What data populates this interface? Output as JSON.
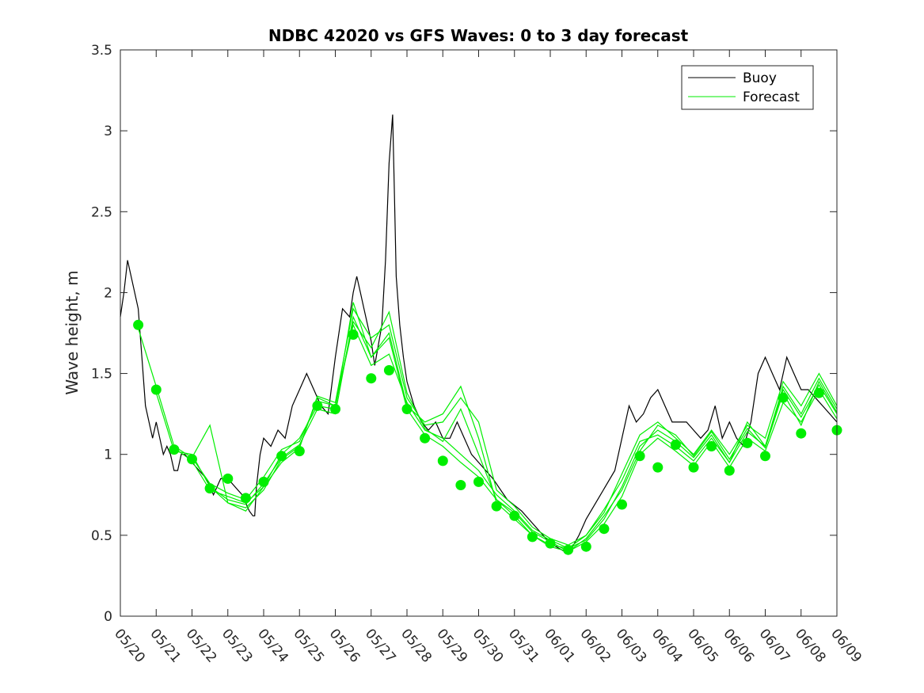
{
  "chart_data": {
    "type": "line",
    "title": "NDBC 42020 vs GFS Waves: 0 to 3 day forecast",
    "xlabel": "",
    "ylabel": "Wave height, m",
    "x_ticks": [
      "05/20",
      "05/21",
      "05/22",
      "05/23",
      "05/24",
      "05/25",
      "05/26",
      "05/27",
      "05/28",
      "05/29",
      "05/30",
      "05/31",
      "06/01",
      "06/02",
      "06/03",
      "06/04",
      "06/05",
      "06/06",
      "06/07",
      "06/08",
      "06/09"
    ],
    "xlim_days": [
      0,
      20
    ],
    "ylim": [
      0,
      3.5
    ],
    "y_ticks": [
      "0",
      "0.5",
      "1",
      "1.5",
      "2",
      "2.5",
      "3",
      "3.5"
    ],
    "grid": false,
    "legend": {
      "position": "top-right",
      "entries": [
        {
          "label": "Buoy",
          "color": "#000000"
        },
        {
          "label": "Forecast",
          "color": "#00ee00"
        }
      ]
    },
    "colors": {
      "buoy": "#000000",
      "forecast": "#00ee00"
    },
    "buoy": {
      "x": [
        0,
        0.1,
        0.2,
        0.3,
        0.4,
        0.5,
        0.6,
        0.7,
        0.8,
        0.9,
        1.0,
        1.1,
        1.2,
        1.3,
        1.4,
        1.5,
        1.6,
        1.7,
        1.8,
        2.0,
        2.2,
        2.4,
        2.5,
        2.6,
        2.8,
        3.0,
        3.2,
        3.4,
        3.5,
        3.6,
        3.7,
        3.75,
        3.8,
        3.9,
        4.0,
        4.2,
        4.4,
        4.6,
        4.8,
        5.0,
        5.2,
        5.4,
        5.6,
        5.8,
        6.0,
        6.2,
        6.4,
        6.5,
        6.6,
        6.7,
        6.8,
        7.0,
        7.1,
        7.3,
        7.4,
        7.5,
        7.6,
        7.65,
        7.7,
        7.8,
        7.9,
        8.0,
        8.2,
        8.4,
        8.6,
        8.8,
        9.0,
        9.2,
        9.4,
        9.6,
        9.8,
        10.0,
        10.4,
        10.8,
        11.2,
        11.6,
        12.0,
        12.4,
        12.6,
        12.8,
        13.0,
        13.4,
        13.8,
        14.0,
        14.2,
        14.4,
        14.6,
        14.8,
        15.0,
        15.2,
        15.4,
        15.6,
        15.8,
        16.0,
        16.2,
        16.4,
        16.6,
        16.8,
        17.0,
        17.2,
        17.4,
        17.6,
        17.8,
        18.0,
        18.2,
        18.4,
        18.6,
        18.8,
        19.0,
        19.2,
        19.4,
        19.6,
        19.8,
        20.0
      ],
      "y": [
        1.85,
        2.0,
        2.2,
        2.1,
        2.0,
        1.9,
        1.6,
        1.3,
        1.2,
        1.1,
        1.2,
        1.1,
        1.0,
        1.05,
        1.0,
        0.9,
        0.9,
        1.0,
        1.0,
        0.95,
        0.9,
        0.85,
        0.8,
        0.75,
        0.85,
        0.85,
        0.8,
        0.75,
        0.7,
        0.65,
        0.62,
        0.62,
        0.8,
        1.0,
        1.1,
        1.05,
        1.15,
        1.1,
        1.3,
        1.4,
        1.5,
        1.4,
        1.3,
        1.25,
        1.6,
        1.9,
        1.85,
        2.0,
        2.1,
        2.0,
        1.9,
        1.7,
        1.55,
        1.8,
        2.2,
        2.8,
        3.1,
        2.6,
        2.1,
        1.8,
        1.6,
        1.45,
        1.3,
        1.2,
        1.15,
        1.2,
        1.1,
        1.1,
        1.2,
        1.1,
        1.0,
        0.95,
        0.85,
        0.72,
        0.65,
        0.55,
        0.45,
        0.4,
        0.42,
        0.5,
        0.6,
        0.75,
        0.9,
        1.1,
        1.3,
        1.2,
        1.25,
        1.35,
        1.4,
        1.3,
        1.2,
        1.2,
        1.2,
        1.15,
        1.1,
        1.15,
        1.3,
        1.1,
        1.2,
        1.1,
        1.05,
        1.2,
        1.5,
        1.6,
        1.5,
        1.4,
        1.6,
        1.5,
        1.4,
        1.4,
        1.35,
        1.3,
        1.25,
        1.2
      ]
    },
    "forecast_markers": {
      "x": [
        0.5,
        1.0,
        1.5,
        2.0,
        2.5,
        3.0,
        3.5,
        4.0,
        4.5,
        5.0,
        5.5,
        6.0,
        6.5,
        7.0,
        7.5,
        8.0,
        8.5,
        9.0,
        9.5,
        10.0,
        10.5,
        11.0,
        11.5,
        12.0,
        12.5,
        13.0,
        13.5,
        14.0,
        14.5,
        15.0,
        15.5,
        16.0,
        16.5,
        17.0,
        17.5,
        18.0,
        18.5,
        19.0,
        19.5,
        20.0
      ],
      "y": [
        1.8,
        1.4,
        1.03,
        0.97,
        0.79,
        0.85,
        0.73,
        0.83,
        0.99,
        1.02,
        1.3,
        1.28,
        1.74,
        1.47,
        1.52,
        1.28,
        1.1,
        0.96,
        0.81,
        0.83,
        0.68,
        0.62,
        0.49,
        0.45,
        0.41,
        0.43,
        0.54,
        0.69,
        0.99,
        0.92,
        1.06,
        0.92,
        1.05,
        0.9,
        1.07,
        0.99,
        1.35,
        1.13,
        1.38,
        1.15
      ]
    },
    "forecast_runs": [
      {
        "x": [
          0.5,
          1.0,
          1.5,
          2.0,
          2.5,
          3.0,
          3.5,
          4.0,
          4.5,
          5.0,
          5.5,
          6.0,
          6.5,
          7.0,
          7.5,
          8.0,
          8.5,
          9.0,
          9.5,
          10.0,
          10.5,
          11.0,
          11.5,
          12.0,
          12.5,
          13.0,
          13.5,
          14.0,
          14.5,
          15.0,
          15.5,
          16.0,
          16.5,
          17.0,
          17.5,
          18.0,
          18.5,
          19.0,
          19.5,
          20.0
        ],
        "y": [
          1.78,
          1.42,
          1.05,
          0.98,
          0.82,
          0.76,
          0.72,
          0.86,
          1.03,
          1.08,
          1.33,
          1.3,
          1.8,
          1.55,
          1.62,
          1.32,
          1.15,
          1.1,
          1.0,
          0.9,
          0.75,
          0.65,
          0.53,
          0.47,
          0.42,
          0.47,
          0.6,
          0.8,
          1.05,
          1.15,
          1.08,
          0.98,
          1.12,
          0.95,
          1.14,
          1.05,
          1.4,
          1.23,
          1.43,
          1.25
        ]
      },
      {
        "x": [
          1.0,
          1.5,
          2.0,
          2.5,
          3.0,
          3.5,
          4.0,
          4.5,
          5.0,
          5.5,
          6.0,
          6.5,
          7.0,
          7.5,
          8.0,
          8.5,
          9.0,
          9.5,
          10.0,
          10.5,
          11.0,
          11.5,
          12.0,
          12.5,
          13.0,
          13.5,
          14.0,
          14.5,
          15.0,
          15.5,
          16.0,
          16.5,
          17.0,
          17.5,
          18.0,
          18.5,
          19.0,
          19.5,
          20.0
        ],
        "y": [
          1.38,
          1.02,
          1.0,
          0.8,
          0.72,
          0.69,
          0.82,
          0.98,
          1.06,
          1.28,
          1.25,
          1.85,
          1.6,
          1.72,
          1.28,
          1.12,
          1.05,
          0.95,
          0.86,
          0.72,
          0.62,
          0.5,
          0.43,
          0.4,
          0.46,
          0.57,
          0.74,
          1.0,
          1.1,
          1.02,
          0.93,
          1.08,
          0.92,
          1.1,
          1.02,
          1.32,
          1.2,
          1.4,
          1.22
        ]
      },
      {
        "x": [
          1.5,
          2.0,
          2.5,
          3.0,
          3.5,
          4.0,
          4.5,
          5.0,
          5.5,
          6.0,
          6.5,
          7.0,
          7.5,
          8.0,
          8.5,
          9.0,
          9.5,
          10.0,
          10.5,
          11.0,
          11.5,
          12.0,
          12.5,
          13.0,
          13.5,
          14.0,
          14.5,
          15.0,
          15.5,
          16.0,
          16.5,
          17.0,
          17.5,
          18.0,
          18.5,
          19.0,
          19.5,
          20.0
        ],
        "y": [
          1.04,
          0.96,
          0.78,
          0.74,
          0.7,
          0.8,
          0.95,
          1.04,
          1.36,
          1.32,
          1.9,
          1.72,
          1.8,
          1.35,
          1.18,
          1.2,
          1.35,
          1.2,
          0.78,
          0.68,
          0.55,
          0.48,
          0.44,
          0.5,
          0.64,
          0.88,
          1.12,
          1.2,
          1.1,
          1.0,
          1.15,
          1.0,
          1.18,
          1.1,
          1.45,
          1.3,
          1.5,
          1.3
        ]
      },
      {
        "x": [
          2.0,
          2.5,
          3.0,
          3.5,
          4.0,
          4.5,
          5.0,
          5.5,
          6.0,
          6.5,
          7.0,
          7.5,
          8.0,
          8.5,
          9.0,
          9.5,
          10.0,
          10.5,
          11.0,
          11.5,
          12.0,
          12.5,
          13.0,
          13.5,
          14.0,
          14.5,
          15.0,
          15.5,
          16.0,
          16.5,
          17.0,
          17.5,
          18.0,
          18.5,
          19.0,
          19.5,
          20.0
        ],
        "y": [
          0.98,
          1.18,
          0.7,
          0.65,
          0.8,
          1.0,
          1.1,
          1.3,
          1.28,
          1.94,
          1.6,
          1.75,
          1.3,
          1.2,
          1.25,
          1.42,
          1.1,
          0.7,
          0.6,
          0.5,
          0.44,
          0.42,
          0.5,
          0.66,
          0.84,
          1.08,
          1.12,
          1.05,
          0.96,
          1.1,
          0.95,
          1.2,
          1.05,
          1.42,
          1.25,
          1.47,
          1.28
        ]
      },
      {
        "x": [
          2.5,
          3.0,
          3.5,
          4.0,
          4.5,
          5.0,
          5.5,
          6.0,
          6.5,
          7.0,
          7.5,
          8.0,
          8.5,
          9.0,
          9.5,
          10.0,
          10.5,
          11.0,
          11.5,
          12.0,
          12.5,
          13.0,
          13.5,
          14.0,
          14.5,
          15.0,
          15.5,
          16.0,
          16.5,
          17.0,
          17.5,
          18.0,
          18.5,
          19.0,
          19.5,
          20.0
        ],
        "y": [
          0.8,
          0.7,
          0.67,
          0.78,
          0.97,
          1.05,
          1.35,
          1.3,
          1.82,
          1.66,
          1.88,
          1.38,
          1.16,
          1.08,
          1.28,
          1.0,
          0.72,
          0.64,
          0.52,
          0.46,
          0.4,
          0.48,
          0.62,
          0.78,
          1.02,
          1.18,
          1.12,
          0.99,
          1.14,
          0.97,
          1.16,
          1.04,
          1.38,
          1.18,
          1.45,
          1.26
        ]
      }
    ]
  }
}
